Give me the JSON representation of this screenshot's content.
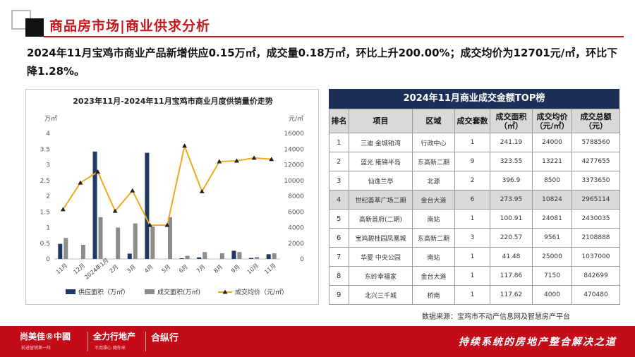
{
  "header": {
    "title": "商品房市场|商业供求分析"
  },
  "headline": "2024年11月宝鸡市商业产品新增供应0.15万㎡，成交量0.18万㎡，环比上升200.00%；成交均价为12701元/㎡，环比下降1.28%。",
  "chart_data": {
    "type": "bar+line",
    "title": "2023年11月-2024年11月宝鸡市商业月度供销量价走势",
    "left_unit": "万㎡",
    "right_unit": "元/㎡",
    "categories": [
      "11月",
      "12月",
      "2024年1月",
      "2月",
      "3月",
      "4月",
      "5月",
      "6月",
      "7月",
      "8月",
      "9月",
      "10月",
      "11月"
    ],
    "series": [
      {
        "name": "供应面积（万㎡）",
        "kind": "bar",
        "axis": "left",
        "color": "#1f3864",
        "values": [
          0.48,
          0,
          3.42,
          0,
          0.17,
          3.38,
          0,
          0.02,
          0.05,
          0,
          0.26,
          0.03,
          0.15
        ]
      },
      {
        "name": "成交面积(万㎡)",
        "kind": "bar",
        "axis": "left",
        "color": "#8c8c8c",
        "values": [
          0.67,
          0.45,
          1.33,
          1.0,
          1.13,
          1.03,
          1.33,
          0.1,
          0.22,
          0.18,
          0.22,
          0.06,
          0.18
        ]
      },
      {
        "name": "成交均价（元/㎡）",
        "kind": "line",
        "axis": "right",
        "color": "#f0a820",
        "values": [
          6300,
          9700,
          11100,
          6100,
          8700,
          4300,
          4300,
          14400,
          8600,
          12400,
          12500,
          12866,
          12701
        ]
      }
    ],
    "left_axis": {
      "min": 0,
      "max": 4,
      "step": 0.5,
      "ticks": [
        "0",
        "0.5",
        "1",
        "1.5",
        "2",
        "2.5",
        "3",
        "3.5",
        "4"
      ]
    },
    "right_axis": {
      "min": 0,
      "max": 16000,
      "step": 2000,
      "ticks": [
        "0",
        "2000",
        "4000",
        "6000",
        "8000",
        "10000",
        "12000",
        "14000",
        "16000"
      ]
    },
    "legend_position": "bottom"
  },
  "table": {
    "title": "2024年11月商业成交金额TOP榜",
    "columns": [
      "排名",
      "项目",
      "区域",
      "成交套数",
      "成交面积（㎡）",
      "成交均价（元/㎡）",
      "成交总额（元）"
    ],
    "rows": [
      [
        "1",
        "三迪 金城铂湾",
        "行政中心",
        "1",
        "241.19",
        "24000",
        "5788560"
      ],
      [
        "2",
        "蓝光 雍锦半岛",
        "东高新二期",
        "9",
        "323.55",
        "13221",
        "4277655"
      ],
      [
        "3",
        "仙逸兰亭",
        "北源",
        "2",
        "396.9",
        "8500",
        "3373650"
      ],
      [
        "4",
        "世纪荟萃广场二期",
        "金台大道",
        "6",
        "273.95",
        "10824",
        "2965114"
      ],
      [
        "5",
        "高新首府(二期)",
        "南站",
        "1",
        "100.91",
        "24081",
        "2430035"
      ],
      [
        "6",
        "宝鸡碧桂园凤凰城",
        "东高新二期",
        "3",
        "220.57",
        "9561",
        "2108888"
      ],
      [
        "7",
        "华夏 中央公园",
        "南站",
        "1",
        "41.48",
        "25000",
        "1037000"
      ],
      [
        "8",
        "东岭幸福家",
        "金台大道",
        "1",
        "117.86",
        "7150",
        "842699"
      ],
      [
        "9",
        "北兴三千城",
        "桥南",
        "1",
        "117.62",
        "4000",
        "470480"
      ]
    ],
    "highlight_rows": [
      4
    ]
  },
  "source": "数据来源：宝鸡市不动产信息网及智慧房产平台",
  "footer": {
    "logo1": "尚美佳®中國",
    "logo1_sub": "前进营销第一阵",
    "logo2": "全力行地产",
    "logo2_sub": "不用操心 随你来",
    "logo3": "合纵行",
    "slogan": "持续系统的房地产整合解决之道",
    "colors": {
      "band": "#c40c19",
      "accent": "#c8161d",
      "navy": "#1e2f57"
    }
  }
}
